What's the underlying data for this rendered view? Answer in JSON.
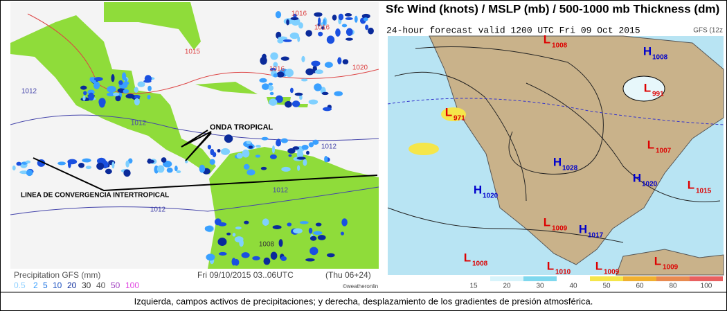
{
  "left_panel": {
    "isobar_labels": [
      "1016",
      "1016",
      "1015",
      "1016",
      "1020",
      "1012",
      "1012",
      "1012",
      "1012",
      "1012",
      "1008"
    ],
    "annotations": {
      "tropical_wave": "ONDA TROPICAL",
      "itcz": "LINEA DE CONVERGENCIA INTERTROPICAL"
    },
    "legend_title": "Precipitation GFS (mm)",
    "legend_values": [
      "0.5",
      "2",
      "5",
      "10",
      "20",
      "30",
      "40",
      "50",
      "100"
    ],
    "timestamp": "Fri 09/10/2015 03..06UTC",
    "forecast": "(Thu 06+24)",
    "credit": "©weatheronlin"
  },
  "right_panel": {
    "title": "Sfc Wind (knots) / MSLP (mb) / 500-1000 mb Thickness (dm)",
    "subtitle": "24-hour forecast valid 1200 UTC Fri 09 Oct 2015",
    "model": "GFS (12z",
    "pressure_centers": [
      {
        "type": "L",
        "value": "1008"
      },
      {
        "type": "H",
        "value": "1008"
      },
      {
        "type": "L",
        "value": "991"
      },
      {
        "type": "L",
        "value": "971"
      },
      {
        "type": "L",
        "value": "1007"
      },
      {
        "type": "H",
        "value": "1028"
      },
      {
        "type": "H",
        "value": "1020"
      },
      {
        "type": "H",
        "value": "1020"
      },
      {
        "type": "L",
        "value": "1015"
      },
      {
        "type": "L",
        "value": "1009"
      },
      {
        "type": "H",
        "value": "1017"
      },
      {
        "type": "L",
        "value": "1008"
      },
      {
        "type": "L",
        "value": "1010"
      },
      {
        "type": "L",
        "value": "1009"
      },
      {
        "type": "L",
        "value": "1009"
      }
    ],
    "colorbar_labels": [
      "15",
      "20",
      "30",
      "40",
      "50",
      "60",
      "80",
      "100"
    ]
  },
  "caption": "Izquierda, campos activos de precipitaciones; y derecha, desplazamiento de los gradientes de presión atmosférica."
}
